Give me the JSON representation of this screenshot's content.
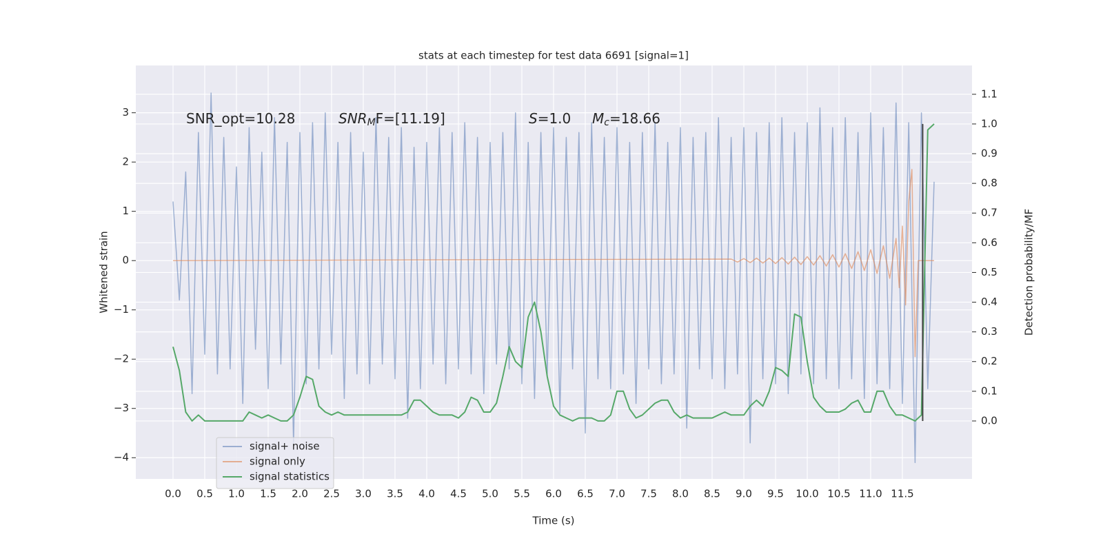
{
  "chart_data": {
    "type": "line",
    "title": "stats at each timestep for test data 6691 [signal=1]",
    "x_label": "Time (s)",
    "y_label": "Whitened strain",
    "y2_label": "Detection probability/MF",
    "annotations": [
      {
        "base": "SNR_opt=10.28"
      },
      {
        "base": "SNR",
        "sub": "M",
        "rest": "F=[11.19]"
      },
      {
        "base": "S",
        "rest": "=1.0"
      },
      {
        "base": "M",
        "sub": "c",
        "rest": "=18.66"
      }
    ],
    "x": [
      0.0,
      0.1,
      0.2,
      0.3,
      0.4,
      0.5,
      0.6,
      0.7,
      0.8,
      0.9,
      1.0,
      1.1,
      1.2,
      1.3,
      1.4,
      1.5,
      1.6,
      1.7,
      1.8,
      1.9,
      2.0,
      2.1,
      2.2,
      2.3,
      2.4,
      2.5,
      2.6,
      2.7,
      2.8,
      2.9,
      3.0,
      3.1,
      3.2,
      3.3,
      3.4,
      3.5,
      3.6,
      3.7,
      3.8,
      3.9,
      4.0,
      4.1,
      4.2,
      4.3,
      4.4,
      4.5,
      4.6,
      4.7,
      4.8,
      4.9,
      5.0,
      5.1,
      5.2,
      5.3,
      5.4,
      5.5,
      5.6,
      5.7,
      5.8,
      5.9,
      6.0,
      6.1,
      6.2,
      6.3,
      6.4,
      6.5,
      6.6,
      6.7,
      6.8,
      6.9,
      7.0,
      7.1,
      7.2,
      7.3,
      7.4,
      7.5,
      7.6,
      7.7,
      7.8,
      7.9,
      8.0,
      8.1,
      8.2,
      8.3,
      8.4,
      8.5,
      8.6,
      8.7,
      8.8,
      8.9,
      9.0,
      9.1,
      9.2,
      9.3,
      9.4,
      9.5,
      9.6,
      9.7,
      9.8,
      9.9,
      10.0,
      10.1,
      10.2,
      10.3,
      10.4,
      10.5,
      10.6,
      10.7,
      10.8,
      10.9,
      11.0,
      11.1,
      11.2,
      11.3,
      11.4,
      11.5,
      11.6,
      11.7,
      11.8,
      11.9,
      12.0
    ],
    "series": [
      {
        "name": "signal+ noise",
        "color": "#4c72b0",
        "values": [
          1.2,
          -0.8,
          1.8,
          -2.7,
          2.6,
          -1.9,
          3.4,
          -2.3,
          2.5,
          -2.2,
          1.9,
          -2.9,
          2.7,
          -1.8,
          2.2,
          -2.6,
          2.9,
          -2.1,
          2.4,
          -3.7,
          2.6,
          -2.5,
          2.8,
          -2.2,
          3.0,
          -1.9,
          2.4,
          -2.8,
          2.6,
          -2.3,
          2.2,
          -2.5,
          2.9,
          -2.1,
          2.5,
          -2.4,
          2.7,
          -3.2,
          2.3,
          -2.6,
          2.4,
          -2.1,
          2.7,
          -2.5,
          2.6,
          -2.2,
          2.8,
          -2.3,
          2.5,
          -2.7,
          2.4,
          -2.1,
          2.6,
          -2.2,
          3.0,
          -2.5,
          2.4,
          -2.8,
          2.6,
          -2.3,
          2.7,
          -3.1,
          2.5,
          -2.2,
          2.6,
          -3.5,
          2.8,
          -2.4,
          2.5,
          -2.6,
          2.7,
          -2.3,
          2.4,
          -2.9,
          2.6,
          -2.2,
          2.8,
          -2.5,
          2.4,
          -2.3,
          2.7,
          -3.4,
          2.5,
          -2.2,
          2.6,
          -2.4,
          2.9,
          -2.6,
          2.5,
          -2.3,
          2.7,
          -3.7,
          2.6,
          -2.4,
          2.8,
          -2.5,
          2.9,
          -2.7,
          2.6,
          -2.3,
          2.8,
          -2.5,
          3.1,
          -2.4,
          2.7,
          -2.6,
          2.9,
          -2.4,
          2.6,
          -2.8,
          3.0,
          -2.5,
          2.7,
          -2.6,
          3.2,
          -2.9,
          2.8,
          -4.1,
          3.0,
          -2.6,
          1.6
        ]
      },
      {
        "name": "signal only",
        "color": "#dd8452",
        "x": [
          0.0,
          8.8,
          8.9,
          9.0,
          9.1,
          9.2,
          9.3,
          9.4,
          9.5,
          9.6,
          9.7,
          9.8,
          9.9,
          10.0,
          10.1,
          10.2,
          10.3,
          10.4,
          10.5,
          10.6,
          10.7,
          10.8,
          10.9,
          11.0,
          11.1,
          11.2,
          11.3,
          11.4,
          11.45,
          11.5,
          11.55,
          11.6,
          11.65,
          11.7,
          11.75,
          12.0
        ],
        "values": [
          0,
          0.03,
          -0.03,
          0.04,
          -0.04,
          0.05,
          -0.05,
          0.05,
          -0.06,
          0.06,
          -0.07,
          0.07,
          -0.08,
          0.08,
          -0.09,
          0.1,
          -0.11,
          0.12,
          -0.13,
          0.14,
          -0.16,
          0.18,
          -0.2,
          0.22,
          -0.26,
          0.3,
          -0.36,
          0.45,
          -0.55,
          0.7,
          -0.9,
          1.2,
          1.85,
          -1.95,
          0,
          0
        ]
      },
      {
        "name": "signal statistics",
        "color": "#55a868",
        "axis": "y2",
        "values": [
          0.25,
          0.17,
          0.03,
          0.0,
          0.02,
          0.0,
          0.0,
          0.0,
          0.0,
          0.0,
          0.0,
          0.0,
          0.03,
          0.02,
          0.01,
          0.02,
          0.01,
          0.0,
          0.0,
          0.02,
          0.08,
          0.15,
          0.14,
          0.05,
          0.03,
          0.02,
          0.03,
          0.02,
          0.02,
          0.02,
          0.02,
          0.02,
          0.02,
          0.02,
          0.02,
          0.02,
          0.02,
          0.03,
          0.07,
          0.07,
          0.05,
          0.03,
          0.02,
          0.02,
          0.02,
          0.01,
          0.03,
          0.08,
          0.07,
          0.03,
          0.03,
          0.06,
          0.15,
          0.25,
          0.2,
          0.18,
          0.35,
          0.4,
          0.3,
          0.15,
          0.05,
          0.02,
          0.01,
          0.0,
          0.01,
          0.01,
          0.01,
          0.0,
          0.0,
          0.02,
          0.1,
          0.1,
          0.04,
          0.01,
          0.02,
          0.04,
          0.06,
          0.07,
          0.07,
          0.03,
          0.01,
          0.02,
          0.01,
          0.01,
          0.01,
          0.01,
          0.02,
          0.03,
          0.02,
          0.02,
          0.02,
          0.05,
          0.07,
          0.05,
          0.1,
          0.18,
          0.17,
          0.15,
          0.36,
          0.35,
          0.2,
          0.08,
          0.05,
          0.03,
          0.03,
          0.03,
          0.04,
          0.06,
          0.07,
          0.03,
          0.03,
          0.1,
          0.1,
          0.05,
          0.02,
          0.02,
          0.01,
          0.0,
          0.02,
          0.98,
          1.0
        ]
      }
    ],
    "vline": {
      "x": 11.82,
      "y2": [
        0,
        1.0
      ],
      "color": "#444444"
    },
    "xlim": [
      -0.587,
      12.598
    ],
    "ylim": [
      -4.43,
      3.96
    ],
    "y2lim": [
      -0.195,
      1.197
    ],
    "xticks": [
      {
        "value": 0,
        "label": "0.0"
      },
      0.5,
      {
        "value": 1,
        "label": "1.0"
      },
      1.5,
      {
        "value": 2,
        "label": "2.0"
      },
      2.5,
      {
        "value": 3,
        "label": "3.0"
      },
      3.5,
      {
        "value": 4,
        "label": "4.0"
      },
      4.5,
      {
        "value": 5,
        "label": "5.0"
      },
      5.5,
      {
        "value": 6,
        "label": "6.0"
      },
      6.5,
      {
        "value": 7,
        "label": "7.0"
      },
      7.5,
      {
        "value": 8,
        "label": "8.0"
      },
      8.5,
      {
        "value": 9,
        "label": "9.0"
      },
      9.5,
      {
        "value": 10,
        "label": "10.0"
      },
      10.5,
      {
        "value": 11,
        "label": "11.0"
      },
      11.5
    ],
    "yticks": [
      {
        "value": -4,
        "label": "−4"
      },
      {
        "value": -3,
        "label": "−3"
      },
      {
        "value": -2,
        "label": "−2"
      },
      {
        "value": -1,
        "label": "−1"
      },
      0,
      1,
      2,
      3
    ],
    "y2ticks": [
      {
        "value": 0,
        "label": "0.0"
      },
      0.1,
      0.2,
      0.3,
      0.4,
      0.5,
      0.6,
      0.7,
      0.8,
      0.9,
      {
        "value": 1,
        "label": "1.0"
      },
      1.1
    ],
    "grid": true,
    "legend": "lower left"
  }
}
